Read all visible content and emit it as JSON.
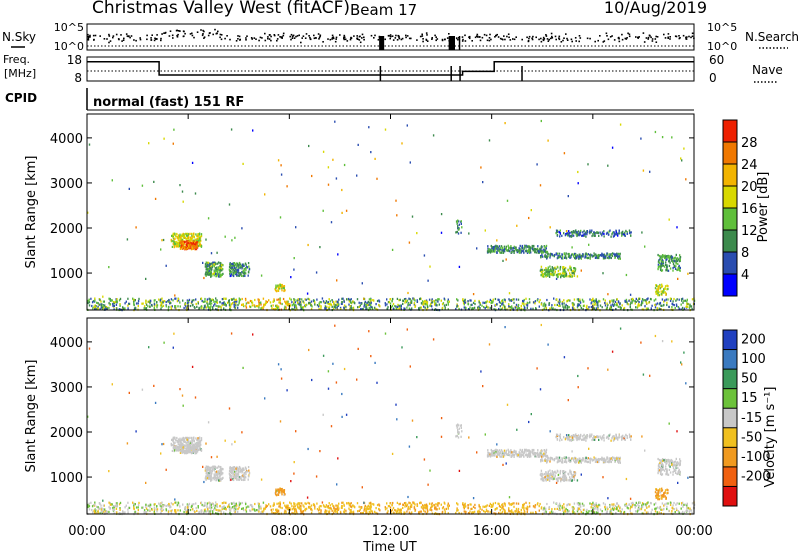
{
  "header": {
    "title": "Christmas Valley West (fitACF)",
    "beam": "Beam 17",
    "date": "10/Aug/2019"
  },
  "strip_labels": {
    "nsky": "N.Sky",
    "nsearch": "N.Search",
    "freq_line1": "Freq.",
    "freq_line2": "[MHz]",
    "nave": "Nave",
    "cpid": "CPID",
    "cpid_value": "normal (fast) 151 RF"
  },
  "chart_data": [
    {
      "type": "line",
      "name": "noise-strip",
      "ylabel_left": "N.Sky",
      "ylabel_right": "N.Search",
      "left_ticks": [
        "10^5",
        "10^0"
      ],
      "right_ticks": [
        "10^5",
        "10^0"
      ],
      "gap_hours": [
        11.55,
        11.75,
        14.3,
        14.55,
        14.7,
        14.75
      ]
    },
    {
      "type": "line",
      "name": "freq-nave-strip",
      "left_ticks": [
        "18",
        "8"
      ],
      "right_ticks": [
        "60",
        "0"
      ],
      "ylim_left": [
        8,
        18
      ],
      "freq_segments": [
        {
          "start": 0,
          "end": 2.85,
          "mhz": 16
        },
        {
          "start": 2.85,
          "end": 14.85,
          "mhz": 10.5
        },
        {
          "start": 14.85,
          "end": 16.1,
          "mhz": 12
        },
        {
          "start": 16.1,
          "end": 24,
          "mhz": 16
        }
      ],
      "nave": 25
    },
    {
      "type": "heatmap",
      "name": "power",
      "ylabel": "Slant Range [km]",
      "yticks": [
        "4000",
        "3000",
        "2000",
        "1000"
      ],
      "yvals": [
        4000,
        3000,
        2000,
        1000
      ],
      "ylim": [
        180,
        4530
      ],
      "xlim": [
        0,
        24
      ],
      "colorbar_label": "Power [dB]",
      "colorbar_ticks": [
        "28",
        "24",
        "20",
        "16",
        "12",
        "8",
        "4"
      ],
      "colorbar_values": [
        28,
        24,
        20,
        16,
        12,
        8,
        4
      ],
      "colorbar_range": [
        0,
        32
      ],
      "colors": [
        "#0000ff",
        "#2a4db0",
        "#3c8a4c",
        "#5fbf3a",
        "#d8d800",
        "#f2b400",
        "#f07800",
        "#ee2000"
      ]
    },
    {
      "type": "heatmap",
      "name": "velocity",
      "ylabel": "Slant Range [km]",
      "yticks": [
        "4000",
        "3000",
        "2000",
        "1000"
      ],
      "yvals": [
        4000,
        3000,
        2000,
        1000
      ],
      "ylim": [
        180,
        4530
      ],
      "xlim": [
        0,
        24
      ],
      "xlabel": "Time UT",
      "xticks": [
        "00:00",
        "04:00",
        "08:00",
        "12:00",
        "16:00",
        "20:00",
        "00:00"
      ],
      "xvals": [
        0,
        4,
        8,
        12,
        16,
        20,
        24
      ],
      "colorbar_label": "Velocity [m s⁻¹]",
      "colorbar_ticks": [
        "200",
        "100",
        "50",
        "15",
        "-15",
        "-50",
        "-100",
        "-200"
      ],
      "colorbar_bounds": [
        250,
        200,
        100,
        50,
        15,
        -15,
        -50,
        -100,
        -200,
        -250
      ],
      "colors": [
        "#2040c0",
        "#3a7ac0",
        "#3a9a5a",
        "#6cc23a",
        "#c8c8c8",
        "#f0c020",
        "#f09a20",
        "#f06010",
        "#e01010"
      ]
    }
  ]
}
